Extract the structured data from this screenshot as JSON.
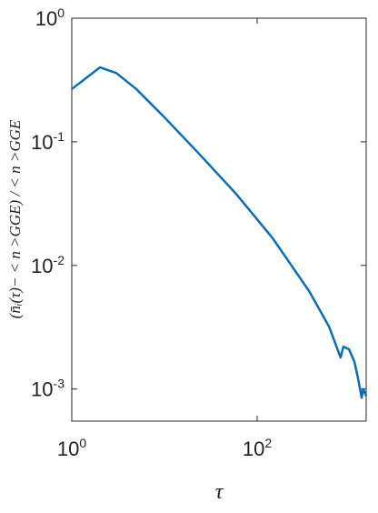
{
  "chart_data": {
    "type": "line",
    "xlabel": "τ",
    "ylabel": "(n̄ᵢ(τ)− < n >GGE) / < n >GGE",
    "x": [
      1,
      2.01,
      3.02,
      4.97,
      9.8,
      24,
      60,
      147,
      363,
      596,
      794,
      851,
      977,
      1120,
      1230,
      1340,
      1390,
      1500
    ],
    "series": [
      {
        "color": "#0b6db5",
        "values": [
          0.267,
          0.4,
          0.36,
          0.267,
          0.16,
          0.079,
          0.0375,
          0.0166,
          0.0062,
          0.0032,
          0.0018,
          0.0022,
          0.0021,
          0.00166,
          0.0012,
          0.00085,
          0.001,
          0.00088
        ]
      }
    ],
    "xlim": [
      1,
      1500
    ],
    "ylim": [
      0.00055,
      1
    ],
    "xticks": [
      {
        "value": 1,
        "label": "10^0"
      },
      {
        "value": 100,
        "label": "10^2"
      }
    ],
    "yticks": [
      {
        "value": 0.001,
        "label": "10^-3"
      },
      {
        "value": 0.01,
        "label": "10^-2"
      },
      {
        "value": 0.1,
        "label": "10^-1"
      },
      {
        "value": 1,
        "label": "10^0"
      }
    ],
    "xscale": "log",
    "yscale": "log",
    "grid": false
  }
}
